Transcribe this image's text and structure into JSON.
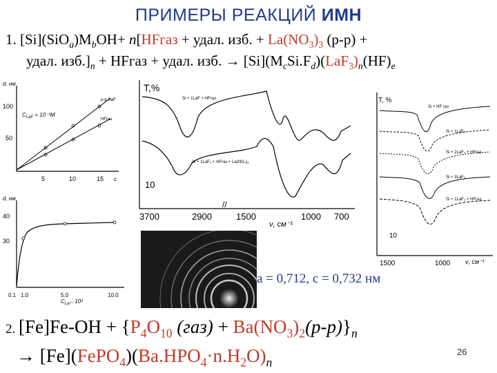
{
  "title_plain": "ПРИМЕРЫ РЕАКЦИЙ",
  "title_bold": "ИМН",
  "eq1": {
    "n1": "1. [Si](SiO",
    "s_a": "a",
    "p2": ")M",
    "s_b": "b",
    "p3": "OH+ ",
    "n_it": "n",
    "p4": "[",
    "hf": "HFгаз",
    "p5": " + удал. изб. + ",
    "la": "La(NO",
    "s3": "3",
    "la2": ")",
    "s3b": "3",
    "p6": " (р-р) +",
    "l2a": "удал. изб.]",
    "l2n": "n",
    "l2b": " + HFгаз + удал. изб. → [Si](M",
    "s_c": "c",
    "l2c": "Si.F",
    "s_d": "d",
    "l2d": ")(",
    "laf": "LaF",
    "s3c": "3",
    "l2e": ")",
    "l2n2": "n",
    "l2f": "(HF)",
    "s_e": "e"
  },
  "plot1": {
    "ylabel": "d, нм",
    "yticks": [
      "100",
      "50"
    ],
    "xticks": [
      "5",
      "10",
      "15"
    ],
    "xunit": "c",
    "annot": "C",
    "annot_sub": "LaF",
    "annot_rest": " = 10⁻³M",
    "series": [
      "p-p NaF",
      "HFгаз"
    ]
  },
  "plot2": {
    "ylabel": "d, нм",
    "yticks": [
      "40",
      "30"
    ],
    "xticks": [
      "0.1",
      "1.0",
      "5.0",
      "10.0"
    ],
    "xlabel": "C",
    "xlabel_sub": "La³⁺",
    "xlabel_rest": "·10³"
  },
  "ir1": {
    "ylabel": "T,%",
    "series_top": "Si + 1LaF + HFгаз",
    "series_bot": "Si + 1LaF₃ + HFгаз + La(NO₃)₃",
    "y10": "10",
    "xticks": [
      "3700",
      "2900",
      "1500",
      "1000",
      "700"
    ],
    "xunit": "ν, см⁻¹",
    "ymark": "//"
  },
  "ir2": {
    "ylabel": "T, %",
    "labels": [
      "Si + HF газ",
      "Si + 1LaF₃",
      "Si + 2LaF₃ + HFгаз",
      "Si + 3LaF₃",
      "Si + 1LaF₃ + HFгаз"
    ],
    "y10": "10",
    "xticks": [
      "1500",
      "1000"
    ],
    "xunit": "ν, см⁻¹"
  },
  "lattice": "a = 0,712, c = 0,732 нм",
  "eq2": {
    "a1": "2. ",
    "a2": "[Fe]Fe-OH + {",
    "p4": "P",
    "s4": "4",
    "o10": "O",
    "s10": "10",
    "gas": " (газ)",
    "plus": " + ",
    "ba": "Ba(NO",
    "s3": "3",
    "ba2": ")",
    "s2": "2",
    "rr": "(р-р)",
    "close": "}",
    "n": "n",
    "b1": "→ [Fe](",
    "fepo": "FePO",
    "s4b": "4",
    "b2": ")(",
    "bahpo": "Ba.HPO",
    "s4c": "4",
    "dot": "·n.H",
    "s2b": "2",
    "o": "O)",
    "n2": "n"
  },
  "page_number": "26"
}
